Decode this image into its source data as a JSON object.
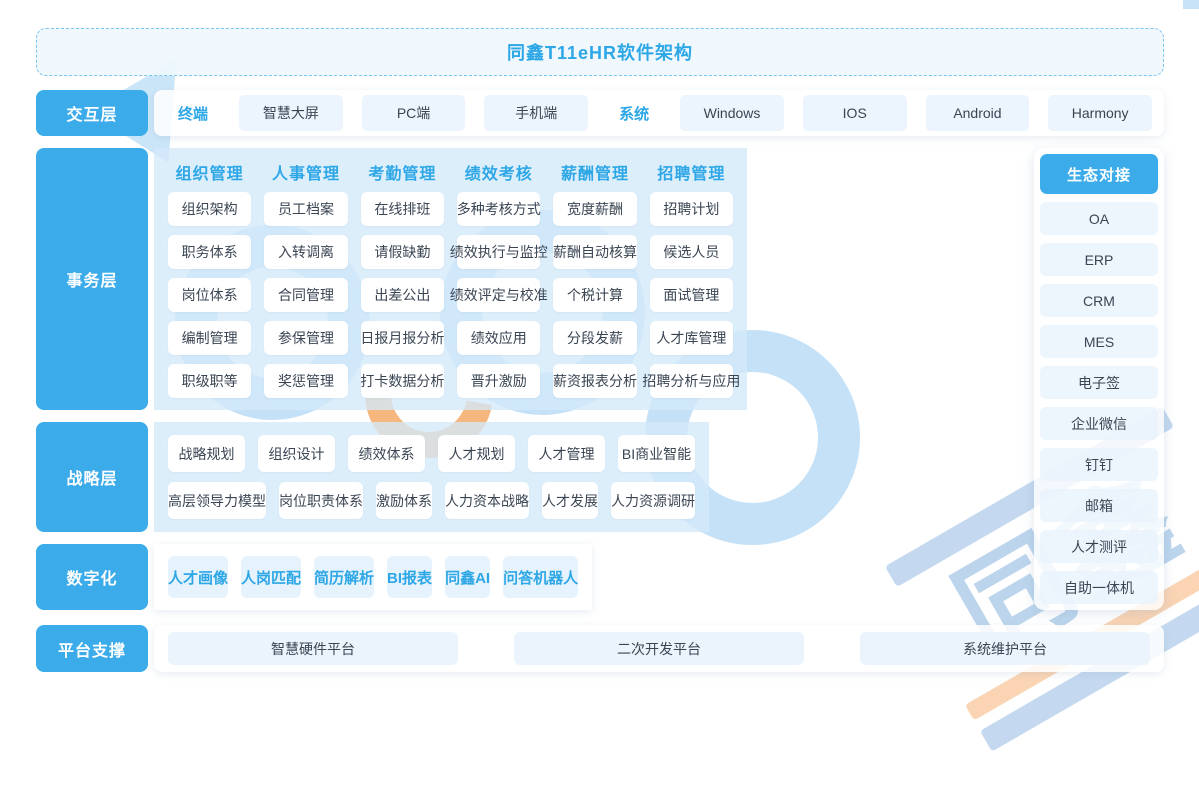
{
  "title": "同鑫T11eHR软件架构",
  "interaction": {
    "label": "交互层",
    "groups": [
      {
        "name": "终端",
        "items": [
          "智慧大屏",
          "PC端",
          "手机端"
        ]
      },
      {
        "name": "系统",
        "items": [
          "Windows",
          "IOS",
          "Android",
          "Harmony"
        ]
      }
    ]
  },
  "business": {
    "label": "事务层",
    "columns": [
      {
        "header": "组织管理",
        "items": [
          "组织架构",
          "职务体系",
          "岗位体系",
          "编制管理",
          "职级职等"
        ]
      },
      {
        "header": "人事管理",
        "items": [
          "员工档案",
          "入转调离",
          "合同管理",
          "参保管理",
          "奖惩管理"
        ]
      },
      {
        "header": "考勤管理",
        "items": [
          "在线排班",
          "请假缺勤",
          "出差公出",
          "日报月报分析",
          "打卡数据分析"
        ]
      },
      {
        "header": "绩效考核",
        "items": [
          "多种考核方式",
          "绩效执行与监控",
          "绩效评定与校准",
          "绩效应用",
          "晋升激励"
        ]
      },
      {
        "header": "薪酬管理",
        "items": [
          "宽度薪酬",
          "薪酬自动核算",
          "个税计算",
          "分段发薪",
          "薪资报表分析"
        ]
      },
      {
        "header": "招聘管理",
        "items": [
          "招聘计划",
          "候选人员",
          "面试管理",
          "人才库管理",
          "招聘分析与应用"
        ]
      }
    ]
  },
  "strategy": {
    "label": "战略层",
    "rows": [
      [
        "战略规划",
        "组织设计",
        "绩效体系",
        "人才规划",
        "人才管理",
        "BI商业智能"
      ],
      [
        "高层领导力模型",
        "岗位职责体系",
        "激励体系",
        "人力资本战略",
        "人才发展",
        "人力资源调研"
      ]
    ]
  },
  "digital": {
    "label": "数字化",
    "items": [
      "人才画像",
      "人岗匹配",
      "简历解析",
      "BI报表",
      "同鑫AI",
      "问答机器人"
    ]
  },
  "platform": {
    "label": "平台支撑",
    "items": [
      "智慧硬件平台",
      "二次开发平台",
      "系统维护平台"
    ]
  },
  "ecosystem": {
    "header": "生态对接",
    "items": [
      "OA",
      "ERP",
      "CRM",
      "MES",
      "电子签",
      "企业微信",
      "钉钉",
      "邮箱",
      "人才测评",
      "自助一体机"
    ]
  },
  "watermark": {
    "seal_text": "同鑫"
  },
  "colors": {
    "accent": "#2EA7E6",
    "layer_label_bg": "#3BACE9",
    "panel_bg": "#D4E9FA",
    "chip_bg": "#EAF4FD",
    "card_bg": "#FFFFFF",
    "title_box_bg": "#EFF7FD",
    "dashed_border": "#7CC6EE",
    "text_dark": "#3A4553",
    "watermark_blue": "#BADCF6",
    "watermark_orange": "#F4A65F"
  }
}
